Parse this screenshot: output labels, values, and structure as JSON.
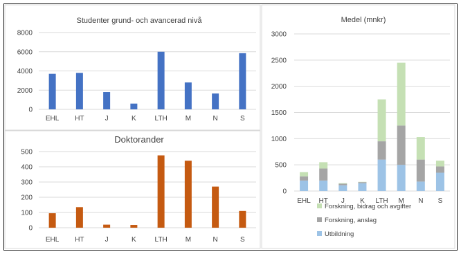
{
  "chart_data": [
    {
      "type": "bar",
      "title": "Studenter grund- och avancerad nivå",
      "categories": [
        "EHL",
        "HT",
        "J",
        "K",
        "LTH",
        "M",
        "N",
        "S"
      ],
      "values": [
        3700,
        3800,
        1800,
        600,
        6000,
        2800,
        1650,
        5850
      ],
      "ylim": [
        0,
        8000
      ],
      "yticks": [
        0,
        2000,
        4000,
        6000,
        8000
      ],
      "grid": true,
      "colors": {
        "bar": "#4472c4"
      }
    },
    {
      "type": "bar",
      "title": "Doktorander",
      "categories": [
        "EHL",
        "HT",
        "J",
        "K",
        "LTH",
        "M",
        "N",
        "S"
      ],
      "values": [
        95,
        135,
        20,
        18,
        475,
        440,
        270,
        110
      ],
      "ylim": [
        0,
        500
      ],
      "yticks": [
        0,
        100,
        200,
        300,
        400,
        500
      ],
      "grid": true,
      "colors": {
        "bar": "#c55a11"
      }
    },
    {
      "type": "bar",
      "stacked": true,
      "title": "Medel (mnkr)",
      "categories": [
        "EHL",
        "HT",
        "J",
        "K",
        "LTH",
        "M",
        "N",
        "S"
      ],
      "series": [
        {
          "name": "Utbildning",
          "values": [
            200,
            200,
            110,
            150,
            600,
            500,
            180,
            350
          ],
          "color": "#9dc3e6"
        },
        {
          "name": "Forskning, anslag",
          "values": [
            80,
            230,
            30,
            20,
            350,
            750,
            420,
            120
          ],
          "color": "#a5a5a5"
        },
        {
          "name": "Forskning, bidrag och avgifter",
          "values": [
            80,
            120,
            10,
            5,
            800,
            1200,
            430,
            110
          ],
          "color": "#c5e0b4"
        }
      ],
      "ylim": [
        0,
        3000
      ],
      "yticks": [
        0,
        500,
        1000,
        1500,
        2000,
        2500,
        3000
      ],
      "grid": true,
      "legend": "bottom"
    }
  ]
}
